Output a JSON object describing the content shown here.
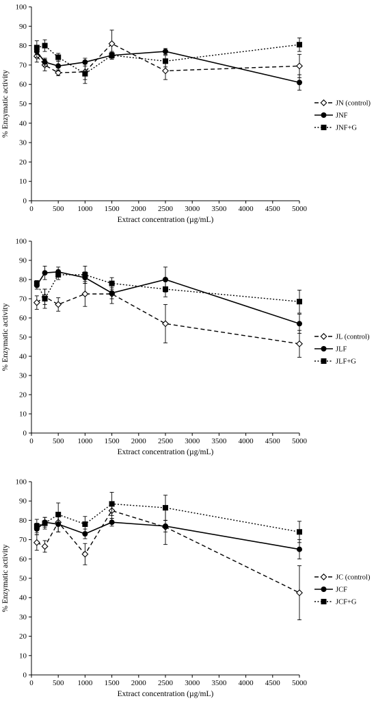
{
  "chart_data": [
    {
      "type": "line",
      "title": "",
      "xlabel": "Extract concentration (µg/mL)",
      "ylabel": "% Enzymatic activity",
      "xlim": [
        0,
        5000
      ],
      "ylim": [
        0,
        100
      ],
      "xticks": [
        0,
        500,
        1000,
        1500,
        2000,
        2500,
        3000,
        3500,
        4000,
        4500,
        5000
      ],
      "yticks": [
        0,
        10,
        20,
        30,
        40,
        50,
        60,
        70,
        80,
        90,
        100
      ],
      "grid": false,
      "legend_position": "right",
      "series": [
        {
          "name": "JN (control)",
          "style": "dashed",
          "marker": "open-diamond",
          "x": [
            100,
            250,
            500,
            1000,
            1500,
            2500,
            5000
          ],
          "y": [
            74.5,
            70,
            66,
            66.5,
            81,
            67,
            69.5
          ],
          "err": [
            3,
            3,
            1.5,
            4,
            7,
            4.5,
            6
          ]
        },
        {
          "name": "JNF",
          "style": "solid",
          "marker": "filled-circle",
          "x": [
            100,
            250,
            500,
            1000,
            1500,
            2500,
            5000
          ],
          "y": [
            77,
            71.5,
            69.5,
            71.5,
            75,
            77,
            61
          ],
          "err": [
            3,
            2,
            2.5,
            2,
            1.5,
            1.5,
            4
          ]
        },
        {
          "name": "JNF+G",
          "style": "dotted",
          "marker": "filled-square",
          "x": [
            100,
            250,
            500,
            1000,
            1500,
            2500,
            5000
          ],
          "y": [
            79,
            80,
            74,
            65.5,
            75,
            72,
            80.5
          ],
          "err": [
            3.5,
            3,
            2,
            5,
            2,
            3,
            3.5
          ]
        }
      ]
    },
    {
      "type": "line",
      "title": "",
      "xlabel": "Extract concentration (µg/mL)",
      "ylabel": "% Enzymatic activity",
      "xlim": [
        0,
        5000
      ],
      "ylim": [
        0,
        100
      ],
      "xticks": [
        0,
        500,
        1000,
        1500,
        2000,
        2500,
        3000,
        3500,
        4000,
        4500,
        5000
      ],
      "yticks": [
        0,
        10,
        20,
        30,
        40,
        50,
        60,
        70,
        80,
        90,
        100
      ],
      "grid": false,
      "legend_position": "right",
      "series": [
        {
          "name": "JL (control)",
          "style": "dashed",
          "marker": "open-diamond",
          "x": [
            100,
            250,
            500,
            1000,
            1500,
            2500,
            5000
          ],
          "y": [
            68,
            71,
            67,
            72.5,
            72.5,
            57,
            46.5
          ],
          "err": [
            3.5,
            4,
            3.5,
            6.5,
            5,
            10,
            7
          ]
        },
        {
          "name": "JLF",
          "style": "solid",
          "marker": "filled-circle",
          "x": [
            100,
            250,
            500,
            1000,
            1500,
            2500,
            5000
          ],
          "y": [
            77,
            83.5,
            84,
            81,
            73,
            80,
            57
          ],
          "err": [
            2,
            3.5,
            2.5,
            3,
            3,
            6.5,
            5
          ]
        },
        {
          "name": "JLF+G",
          "style": "dotted",
          "marker": "filled-square",
          "x": [
            100,
            250,
            500,
            1000,
            1500,
            2500,
            5000
          ],
          "y": [
            78,
            70,
            82.5,
            82.5,
            78,
            75,
            68.5
          ],
          "err": [
            1.5,
            5,
            2.5,
            4.5,
            3,
            4,
            6
          ]
        }
      ]
    },
    {
      "type": "line",
      "title": "",
      "xlabel": "Extract concentration (µg/mL)",
      "ylabel": "% Enzymatic activity",
      "xlim": [
        0,
        5000
      ],
      "ylim": [
        0,
        100
      ],
      "xticks": [
        0,
        500,
        1000,
        1500,
        2000,
        2500,
        3000,
        3500,
        4000,
        4500,
        5000
      ],
      "yticks": [
        0,
        10,
        20,
        30,
        40,
        50,
        60,
        70,
        80,
        90,
        100
      ],
      "grid": false,
      "legend_position": "right",
      "series": [
        {
          "name": "JC (control)",
          "style": "dashed",
          "marker": "open-diamond",
          "x": [
            100,
            250,
            500,
            1000,
            1500,
            2500,
            5000
          ],
          "y": [
            68.5,
            66.5,
            79,
            62.5,
            85,
            76.5,
            42.5
          ],
          "err": [
            4,
            3,
            5,
            5.5,
            4,
            9,
            14
          ]
        },
        {
          "name": "JCF",
          "style": "solid",
          "marker": "filled-circle",
          "x": [
            100,
            250,
            500,
            1000,
            1500,
            2500,
            5000
          ],
          "y": [
            75.5,
            79,
            78,
            73,
            79,
            77,
            65
          ],
          "err": [
            3,
            2.5,
            4,
            2.5,
            2,
            3,
            5
          ]
        },
        {
          "name": "JCF+G",
          "style": "dotted",
          "marker": "filled-square",
          "x": [
            100,
            250,
            500,
            1000,
            1500,
            2500,
            5000
          ],
          "y": [
            77,
            78.5,
            83,
            78,
            88.5,
            86.5,
            74
          ],
          "err": [
            3.5,
            3,
            6,
            4,
            6,
            6.5,
            5.5
          ]
        }
      ]
    }
  ]
}
